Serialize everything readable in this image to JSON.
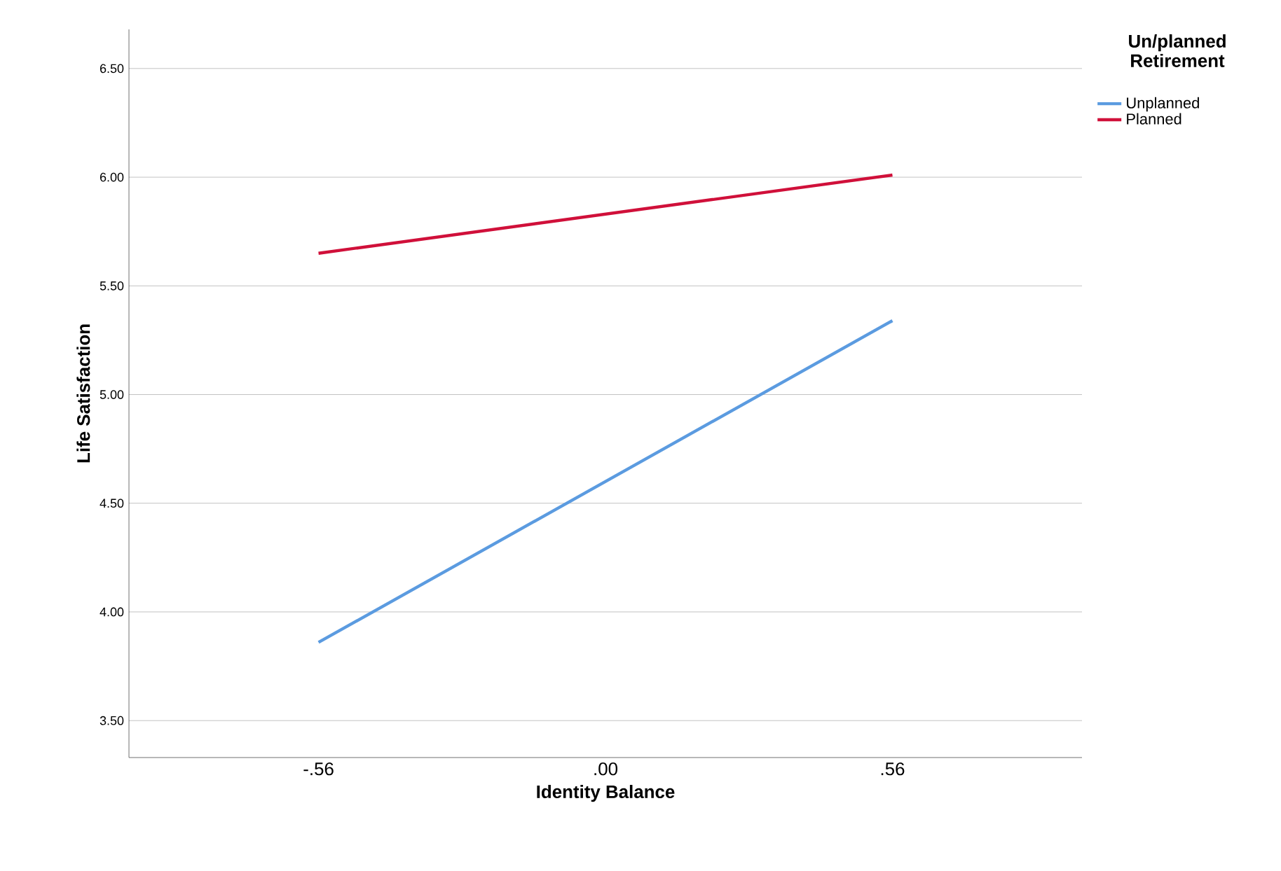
{
  "chart_data": {
    "type": "line",
    "xlabel": "Identity Balance",
    "ylabel": "Life Satisfaction",
    "legend_title": "Un/planned Retirement",
    "x": [
      -0.56,
      0.56
    ],
    "xlim": [
      -0.93,
      0.93
    ],
    "xticks": [
      {
        "value": -0.56,
        "label": "-.56"
      },
      {
        "value": 0,
        "label": ".00"
      },
      {
        "value": 0.56,
        "label": ".56"
      }
    ],
    "ylim": [
      3.33,
      6.68
    ],
    "yticks": [
      {
        "value": 3.5,
        "label": "3.50"
      },
      {
        "value": 4.0,
        "label": "4.00"
      },
      {
        "value": 4.5,
        "label": "4.50"
      },
      {
        "value": 5.0,
        "label": "5.00"
      },
      {
        "value": 5.5,
        "label": "5.50"
      },
      {
        "value": 6.0,
        "label": "6.00"
      },
      {
        "value": 6.5,
        "label": "6.50"
      }
    ],
    "series": [
      {
        "name": "Unplanned",
        "color": "#5b9be0",
        "values": [
          3.86,
          5.34
        ]
      },
      {
        "name": "Planned",
        "color": "#d0103a",
        "values": [
          5.65,
          6.01
        ]
      }
    ],
    "grid": "y",
    "legend": "top right",
    "marker": "none",
    "line_style": "solid"
  }
}
